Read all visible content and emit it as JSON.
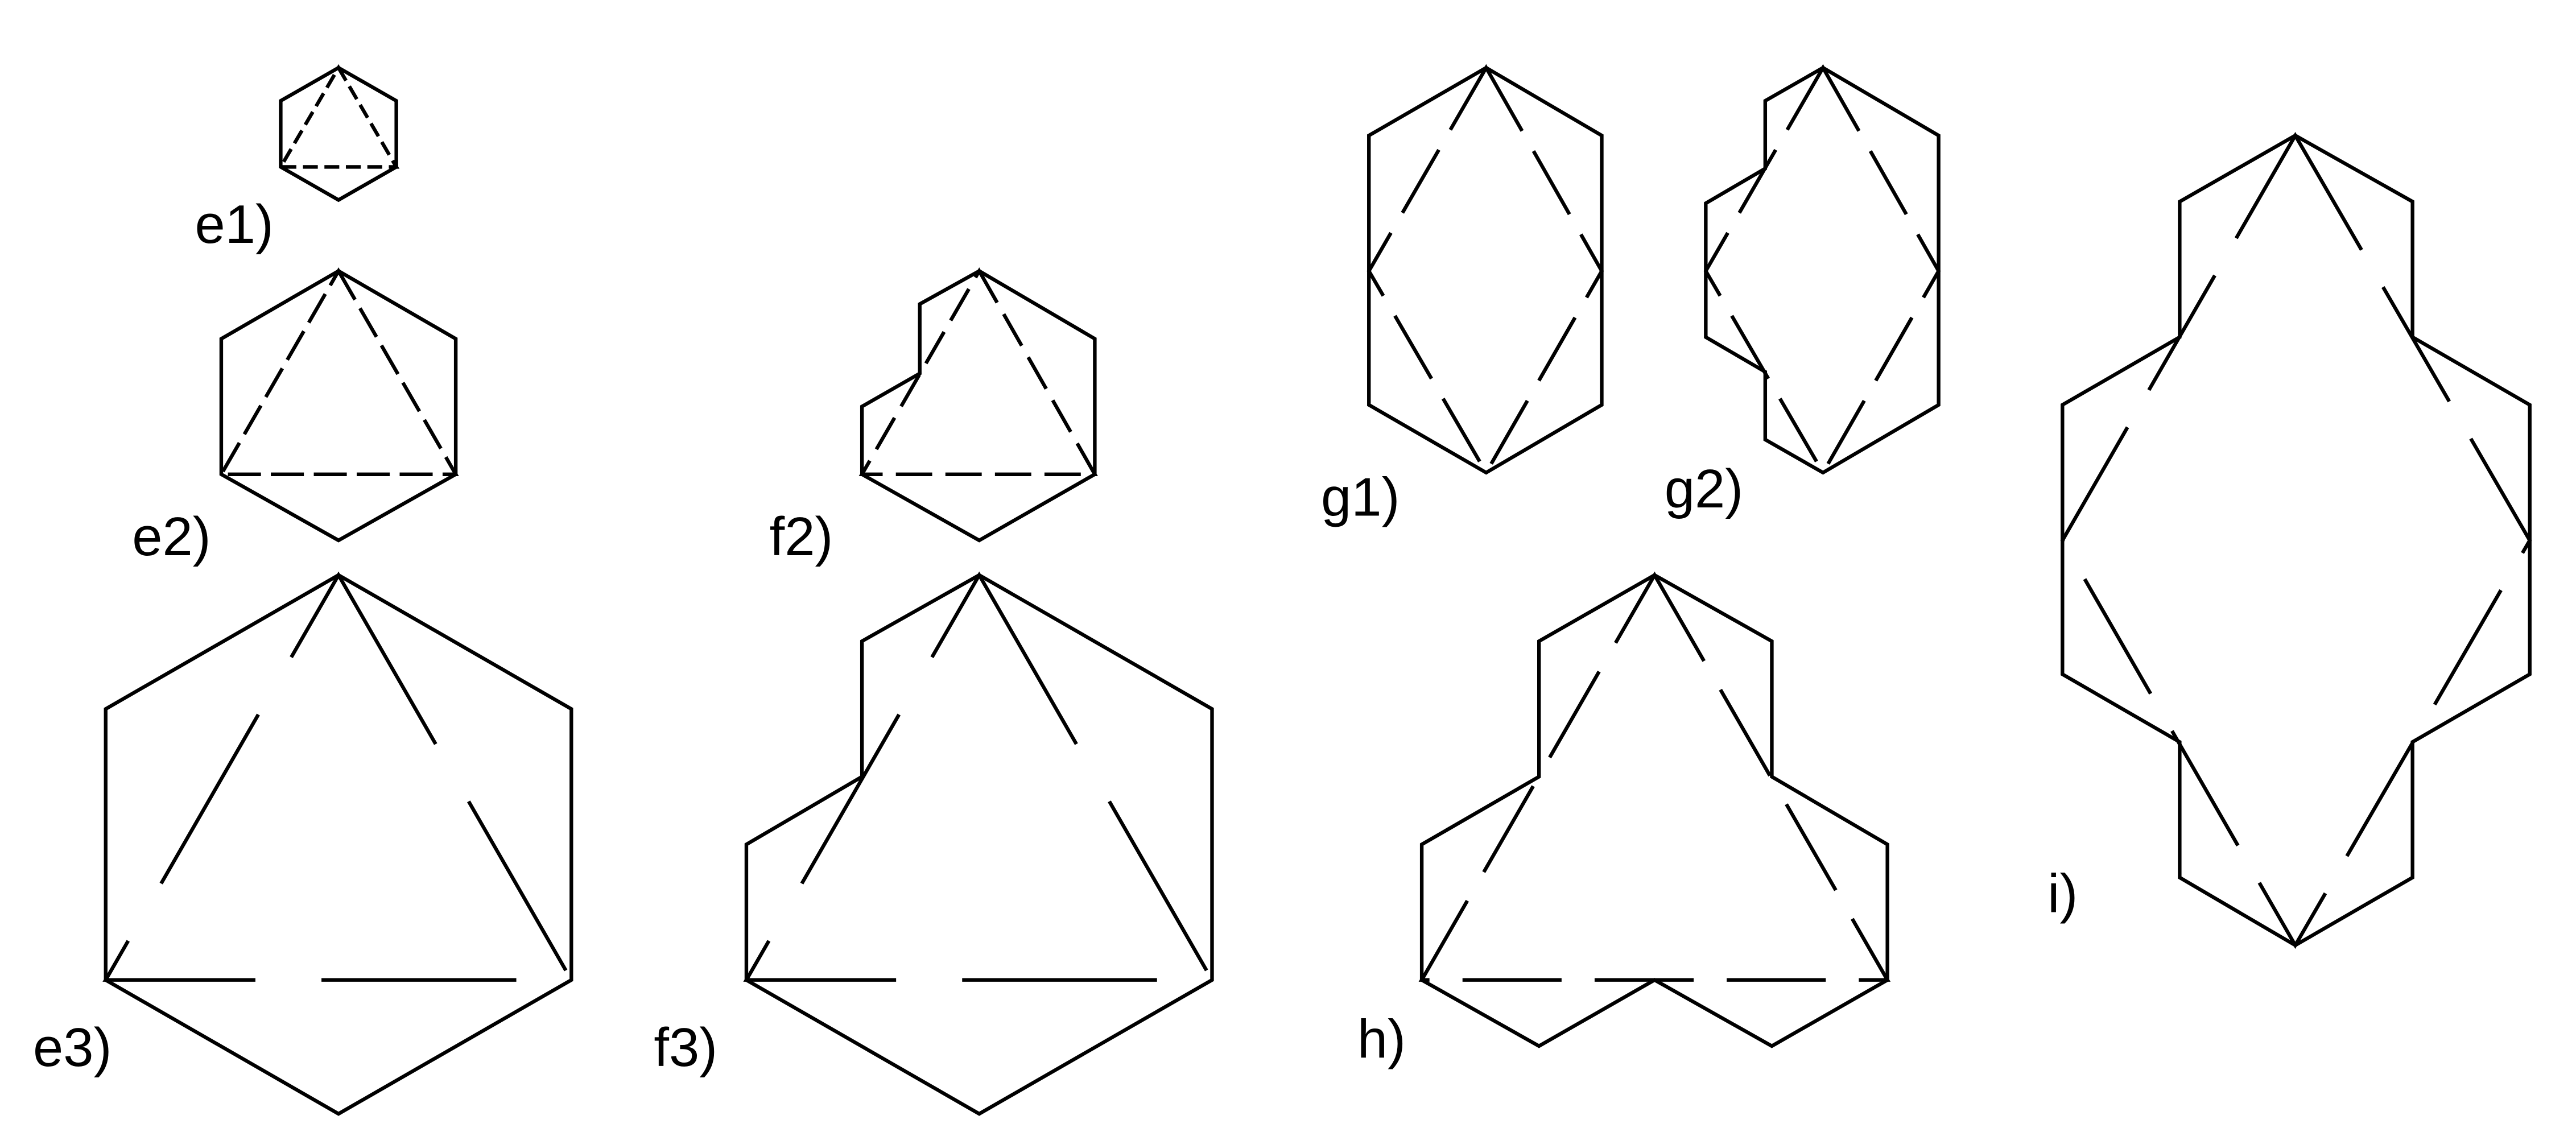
{
  "figure": {
    "labels": {
      "e1": "e1)",
      "e2": "e2)",
      "e3": "e3)",
      "f2": "f2)",
      "f3": "f3)",
      "g1": "g1)",
      "g2": "g2)",
      "h": "h)",
      "i": "i)"
    },
    "line_color": "#000000",
    "background": "#ffffff"
  }
}
